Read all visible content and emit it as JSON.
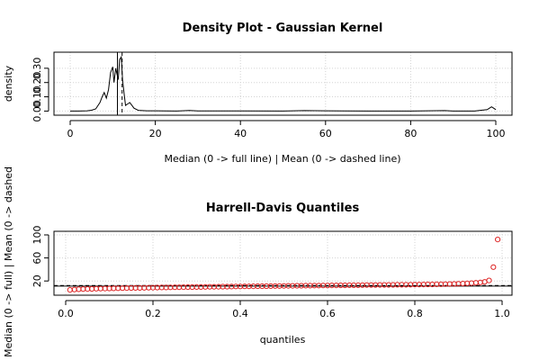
{
  "chart_data": [
    {
      "type": "line",
      "title": "Density Plot - Gaussian Kernel",
      "xlabel": "Median (0 -> full line) | Mean (0 -> dashed line)",
      "ylabel": "density",
      "xlim": [
        0,
        100
      ],
      "ylim": [
        -0.01,
        0.4
      ],
      "x_ticks": [
        "0",
        "20",
        "40",
        "60",
        "80",
        "100"
      ],
      "y_ticks": [
        "0.00",
        "0.10",
        "0.20",
        "0.30"
      ],
      "grid": true,
      "series": [
        {
          "x": [
            0,
            2,
            4,
            5,
            6,
            7,
            7.5,
            8,
            8.5,
            9,
            9.5,
            10,
            10.3,
            10.7,
            11,
            11.3,
            11.6,
            12,
            12.3,
            12.6,
            13,
            13.5,
            14,
            14.5,
            15,
            16,
            18,
            20,
            25,
            28,
            30,
            35,
            40,
            50,
            55,
            60,
            70,
            80,
            88,
            90,
            95,
            98,
            98.5,
            99,
            99.5,
            100
          ],
          "y": [
            0.0,
            0.0,
            0.002,
            0.006,
            0.015,
            0.06,
            0.1,
            0.13,
            0.09,
            0.15,
            0.27,
            0.31,
            0.2,
            0.3,
            0.26,
            0.22,
            0.36,
            0.38,
            0.22,
            0.14,
            0.04,
            0.05,
            0.06,
            0.04,
            0.02,
            0.005,
            0.002,
            0.002,
            0.0,
            0.004,
            0.001,
            0.001,
            0.001,
            0.0,
            0.003,
            0.002,
            0.0,
            0.0,
            0.003,
            0.0,
            0.0,
            0.01,
            0.02,
            0.03,
            0.02,
            0.01
          ]
        }
      ],
      "vlines": [
        {
          "x": 11.1,
          "style": "full"
        },
        {
          "x": 12.2,
          "style": "dashed"
        }
      ]
    },
    {
      "type": "scatter",
      "title": "Harrell-Davis Quantiles",
      "xlabel": "quantiles",
      "ylabel": "Median (0 -> full) | Mean (0 -> dashed",
      "xlim": [
        0,
        1
      ],
      "ylim": [
        0,
        100
      ],
      "x_ticks": [
        "0.0",
        "0.2",
        "0.4",
        "0.6",
        "0.8",
        "1.0"
      ],
      "y_ticks": [
        "20",
        "60",
        "100"
      ],
      "grid": true,
      "point_color": "#dd2222",
      "x": [
        0.01,
        0.02,
        0.03,
        0.04,
        0.05,
        0.06,
        0.07,
        0.08,
        0.09,
        0.1,
        0.11,
        0.12,
        0.13,
        0.14,
        0.15,
        0.16,
        0.17,
        0.18,
        0.19,
        0.2,
        0.21,
        0.22,
        0.23,
        0.24,
        0.25,
        0.26,
        0.27,
        0.28,
        0.29,
        0.3,
        0.31,
        0.32,
        0.33,
        0.34,
        0.35,
        0.36,
        0.37,
        0.38,
        0.39,
        0.4,
        0.41,
        0.42,
        0.43,
        0.44,
        0.45,
        0.46,
        0.47,
        0.48,
        0.49,
        0.5,
        0.51,
        0.52,
        0.53,
        0.54,
        0.55,
        0.56,
        0.57,
        0.58,
        0.59,
        0.6,
        0.61,
        0.62,
        0.63,
        0.64,
        0.65,
        0.66,
        0.67,
        0.68,
        0.69,
        0.7,
        0.71,
        0.72,
        0.73,
        0.74,
        0.75,
        0.76,
        0.77,
        0.78,
        0.79,
        0.8,
        0.81,
        0.82,
        0.83,
        0.84,
        0.85,
        0.86,
        0.87,
        0.88,
        0.89,
        0.9,
        0.91,
        0.92,
        0.93,
        0.94,
        0.95,
        0.96,
        0.97,
        0.98,
        0.99
      ],
      "y": [
        4.5,
        5.2,
        5.6,
        5.9,
        6.1,
        6.3,
        6.5,
        6.7,
        6.9,
        7.0,
        7.2,
        7.3,
        7.5,
        7.6,
        7.8,
        7.9,
        8.0,
        8.2,
        8.3,
        8.4,
        8.6,
        8.7,
        8.8,
        8.9,
        9.0,
        9.1,
        9.2,
        9.3,
        9.4,
        9.5,
        9.6,
        9.7,
        9.8,
        9.9,
        10.0,
        10.1,
        10.2,
        10.3,
        10.4,
        10.5,
        10.6,
        10.7,
        10.8,
        10.9,
        11.0,
        11.0,
        11.1,
        11.2,
        11.3,
        11.4,
        11.5,
        11.6,
        11.7,
        11.7,
        11.8,
        11.9,
        12.0,
        12.1,
        12.2,
        12.2,
        12.3,
        12.4,
        12.5,
        12.5,
        12.6,
        12.7,
        12.7,
        12.8,
        12.9,
        12.9,
        13.0,
        13.1,
        13.1,
        13.2,
        13.3,
        13.4,
        13.4,
        13.5,
        13.6,
        13.7,
        13.8,
        13.9,
        14.0,
        14.1,
        14.2,
        14.4,
        14.5,
        14.7,
        14.9,
        15.2,
        15.5,
        15.9,
        16.3,
        16.8,
        17.5,
        18.5,
        21.0,
        44.0,
        92.0
      ],
      "hlines": [
        {
          "y": 11.1,
          "style": "full"
        },
        {
          "y": 12.2,
          "style": "dashed"
        }
      ]
    }
  ]
}
